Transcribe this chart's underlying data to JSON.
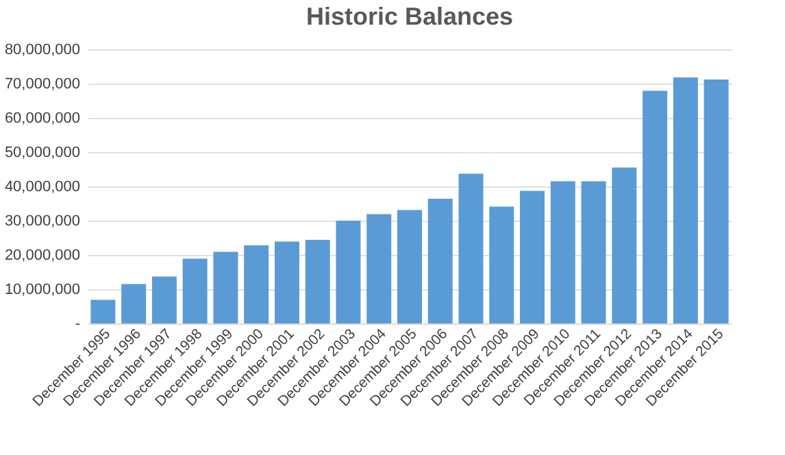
{
  "chart_data": {
    "type": "bar",
    "title": "Historic Balances",
    "categories": [
      "December 1995",
      "December 1996",
      "December 1997",
      "December 1998",
      "December 1999",
      "December 2000",
      "December 2001",
      "December 2002",
      "December 2003",
      "December 2004",
      "December 2005",
      "December 2006",
      "December 2007",
      "December 2008",
      "December 2009",
      "December 2010",
      "December 2011",
      "December 2012",
      "December 2013",
      "December 2014",
      "December 2015"
    ],
    "values": [
      6900000,
      11500000,
      13700000,
      18900000,
      20900000,
      22800000,
      23900000,
      24400000,
      30000000,
      31900000,
      33100000,
      36400000,
      43700000,
      34100000,
      38700000,
      41500000,
      41500000,
      45500000,
      67900000,
      71800000,
      71200000
    ],
    "color": "#5b9bd5",
    "ylim": [
      0,
      80000000
    ],
    "yticks": [
      {
        "value": 0,
        "label": "-"
      },
      {
        "value": 10000000,
        "label": "10,000,000"
      },
      {
        "value": 20000000,
        "label": "20,000,000"
      },
      {
        "value": 30000000,
        "label": "30,000,000"
      },
      {
        "value": 40000000,
        "label": "40,000,000"
      },
      {
        "value": 50000000,
        "label": "50,000,000"
      },
      {
        "value": 60000000,
        "label": "60,000,000"
      },
      {
        "value": 70000000,
        "label": "70,000,000"
      },
      {
        "value": 80000000,
        "label": "80,000,000"
      }
    ],
    "grid": "y"
  }
}
